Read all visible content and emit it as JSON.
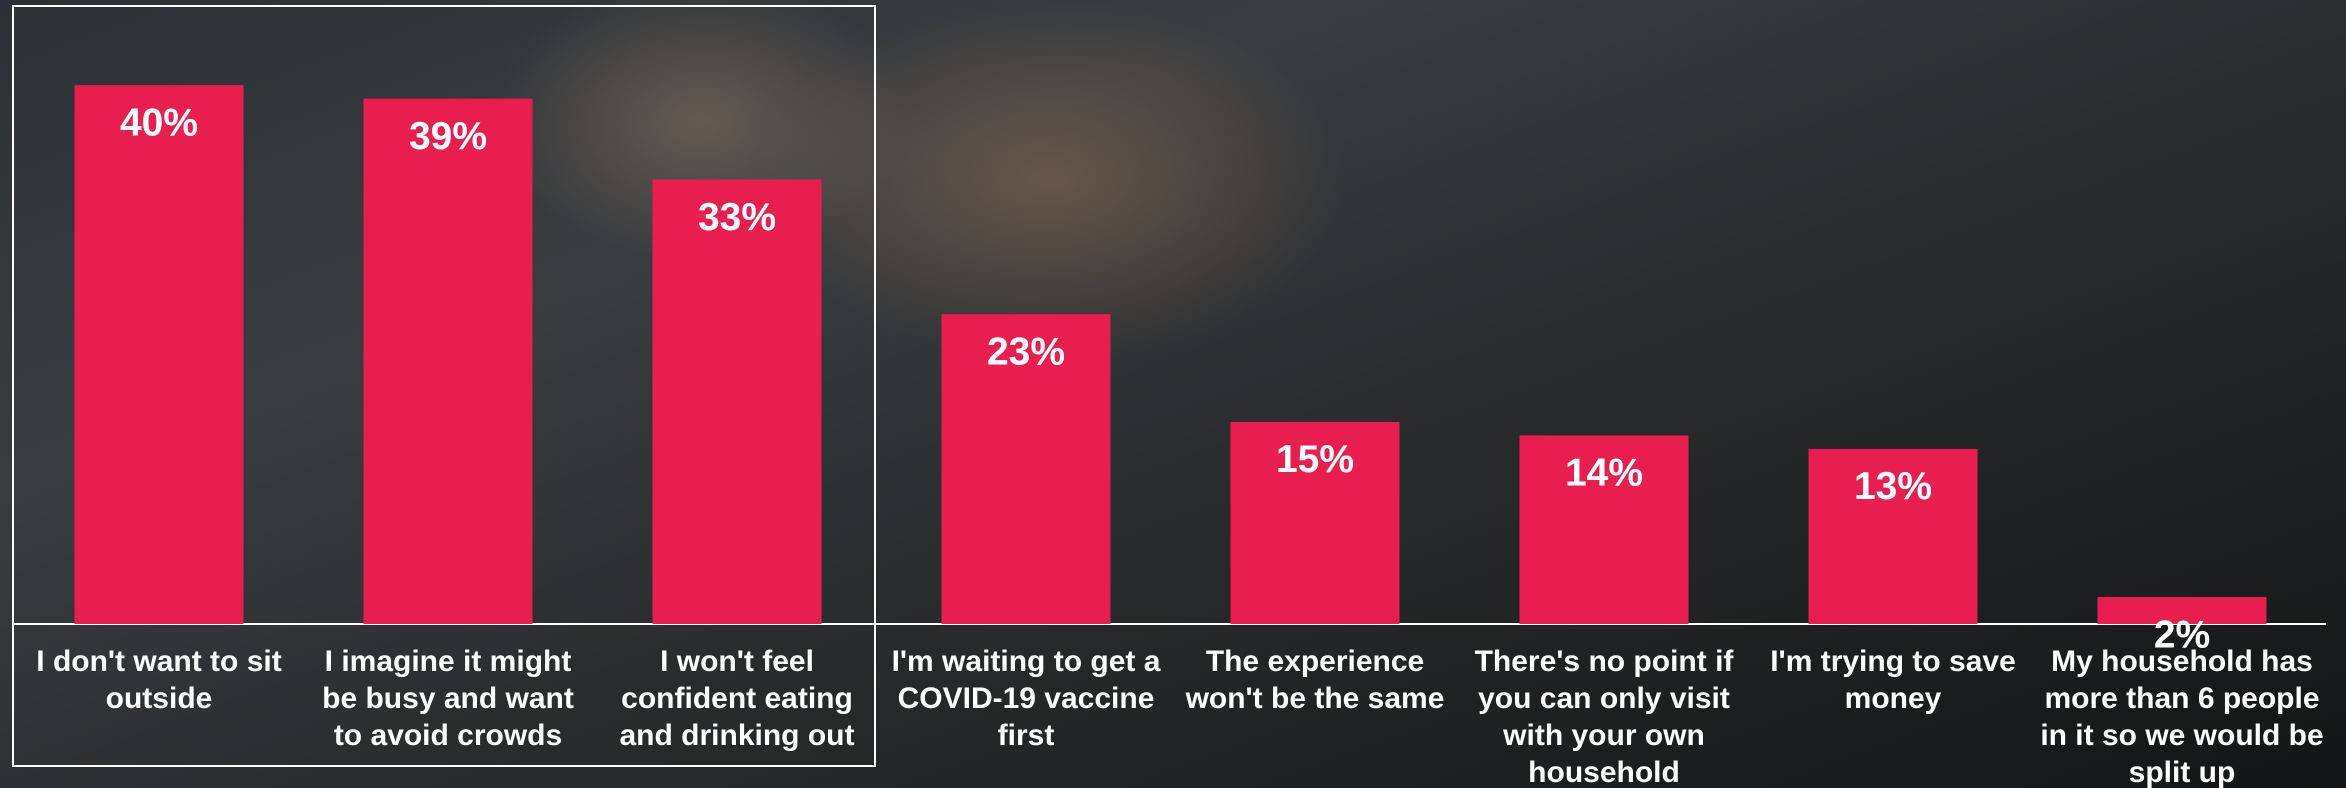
{
  "chart_data": {
    "type": "bar",
    "categories": [
      "I don't want to sit outside",
      "I imagine it might be busy and want to avoid crowds",
      "I won't feel confident eating and drinking out",
      "I'm waiting to get a COVID-19 vaccine first",
      "The experience won't be the same",
      "There's no point if you can only visit with your own household",
      "I'm trying to save money",
      "My household has more than 6 people in it so we would be split up"
    ],
    "values": [
      40,
      39,
      33,
      23,
      15,
      14,
      13,
      2
    ],
    "value_labels": [
      "40%",
      "39%",
      "33%",
      "23%",
      "15%",
      "14%",
      "13%",
      "2%"
    ],
    "color": "#e91e50"
  }
}
